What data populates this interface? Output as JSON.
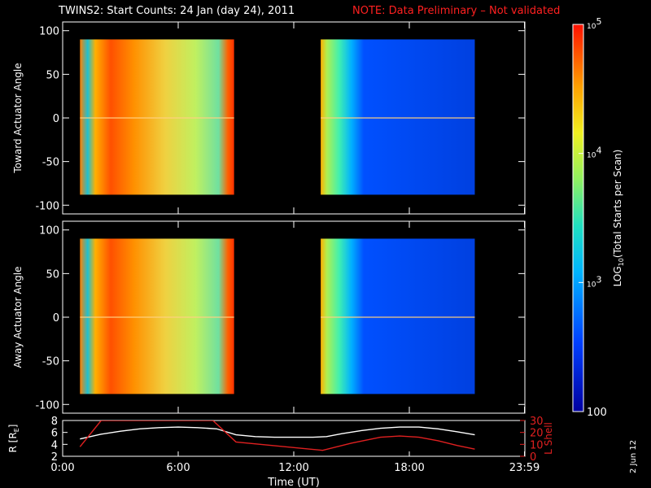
{
  "header": {
    "title": "TWINS2: Start Counts: 24 Jan (day  24), 2011",
    "note": "NOTE: Data Preliminary – Not validated"
  },
  "footer": {
    "date_stamp": "2 Jun 12"
  },
  "colors": {
    "background": "#000000",
    "note": "#ff2020",
    "r_trace": "#ffffff",
    "l_shell_trace": "#e02020"
  },
  "chart_data": [
    {
      "type": "heatmap",
      "ylabel": "Toward Actuator Angle",
      "ylim": [
        -110,
        110
      ],
      "yticks": [
        100,
        50,
        0,
        -50,
        -100
      ],
      "xlim": [
        0,
        24
      ],
      "data_coverage_hours": [
        [
          0.9,
          8.9
        ],
        [
          13.4,
          21.4
        ]
      ],
      "angle_range": [
        -88,
        90
      ]
    },
    {
      "type": "heatmap",
      "ylabel": "Away Actuator Angle",
      "ylim": [
        -110,
        110
      ],
      "yticks": [
        100,
        50,
        0,
        -50,
        -100
      ],
      "xlim": [
        0,
        24
      ],
      "data_coverage_hours": [
        [
          0.9,
          8.9
        ],
        [
          13.4,
          21.4
        ]
      ],
      "angle_range": [
        -88,
        90
      ]
    },
    {
      "type": "line",
      "ylabel": "R [R",
      "ylabel_sub": "E",
      "ylabel_end": "]",
      "ylim": [
        2,
        8
      ],
      "yticks": [
        "8",
        "6",
        "4",
        "2"
      ],
      "y2label": "L Shell",
      "y2lim": [
        0,
        30
      ],
      "y2ticks": [
        "30",
        "20",
        "10",
        "0"
      ],
      "xlim": [
        0,
        24
      ],
      "xticks": [
        "0:00",
        "6:00",
        "12:00",
        "18:00",
        "23:59"
      ],
      "xtick_hours": [
        0,
        6,
        12,
        18,
        23.98
      ],
      "xlabel": "Time (UT)",
      "series": [
        {
          "kind": "R",
          "x": [
            0.9,
            2,
            3,
            4,
            5,
            6,
            7,
            8,
            9,
            10,
            11,
            12,
            13,
            13.7,
            14.5,
            15.5,
            16.5,
            17.5,
            18.5,
            19.5,
            20.5,
            21.4
          ],
          "y": [
            4.9,
            5.7,
            6.2,
            6.6,
            6.8,
            6.9,
            6.8,
            6.6,
            5.6,
            5.3,
            5.2,
            5.2,
            5.2,
            5.3,
            5.8,
            6.3,
            6.7,
            6.9,
            6.9,
            6.6,
            6.1,
            5.6
          ]
        },
        {
          "kind": "L",
          "x": [
            0.9,
            2,
            7.8,
            9,
            13.5,
            15,
            16.5,
            17.5,
            18.5,
            19.5,
            20.5,
            21.4
          ],
          "y": [
            8,
            30,
            30,
            12,
            5,
            11,
            16,
            17,
            16,
            13,
            9,
            6
          ]
        }
      ]
    },
    {
      "type": "colorbar",
      "label": "LOG",
      "label_sub": "10",
      "label_end": "(Total Starts per Scan)",
      "range": [
        100,
        100000
      ],
      "ticks": [
        {
          "value": 100000,
          "base": "10",
          "exp": "5"
        },
        {
          "value": 10000,
          "base": "10",
          "exp": "4"
        },
        {
          "value": 1000,
          "base": "10",
          "exp": "3"
        },
        {
          "value": 100,
          "base": "100",
          "exp": ""
        }
      ]
    }
  ]
}
